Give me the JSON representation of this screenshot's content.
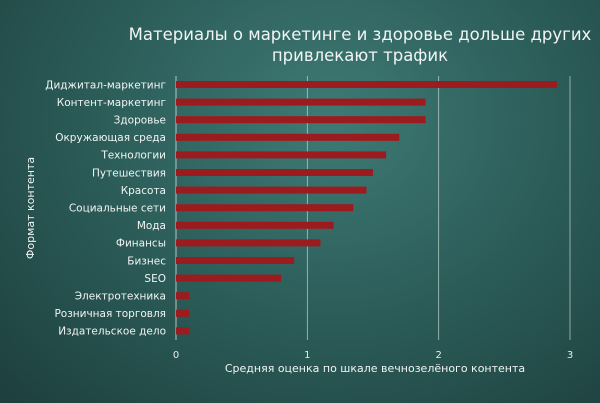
{
  "chart_data": {
    "type": "bar",
    "orientation": "horizontal",
    "title": "Материалы о маркетинге и здоровье дольше других привлекают трафик",
    "xlabel": "Средняя оценка по шкале вечнозелёного контента",
    "ylabel": "Формат контента",
    "xlim": [
      0,
      3
    ],
    "xticks": [
      "0",
      "1",
      "2",
      "3"
    ],
    "grid": true,
    "categories": [
      "Диджитал-маркетинг",
      "Контент-маркетинг",
      "Здоровье",
      "Окружающая среда",
      "Технологии",
      "Путешествия",
      "Красота",
      "Социальные сети",
      "Мода",
      "Финансы",
      "Бизнес",
      "SEO",
      "Электротехника",
      "Розничная торговля",
      "Издательское дело"
    ],
    "values": [
      2.9,
      1.9,
      1.9,
      1.7,
      1.6,
      1.5,
      1.45,
      1.35,
      1.2,
      1.1,
      0.9,
      0.8,
      0.1,
      0.1,
      0.1
    ],
    "bar_color": "#9b1b1f"
  }
}
